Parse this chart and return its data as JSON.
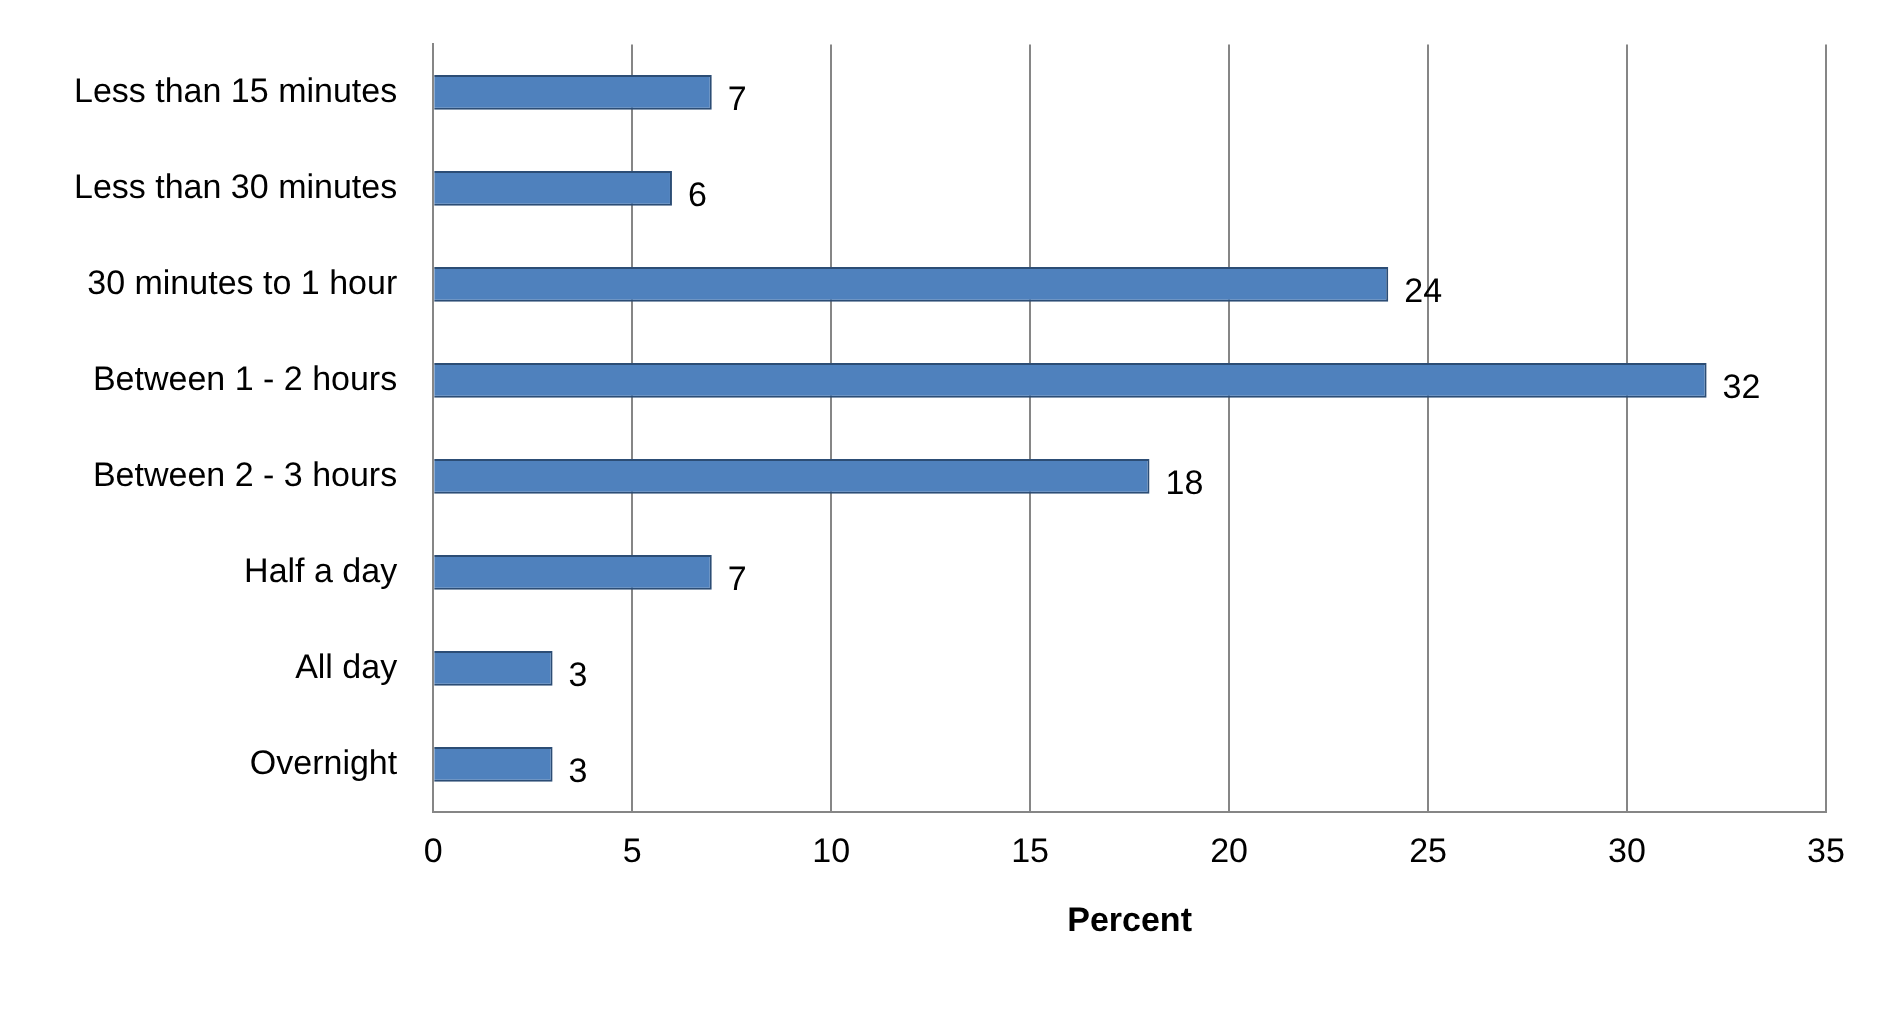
{
  "chart_data": {
    "type": "bar",
    "orientation": "horizontal",
    "xlabel": "Percent",
    "categories": [
      "Less than 15 minutes",
      "Less than 30 minutes",
      "30 minutes to 1 hour",
      "Between 1 - 2 hours",
      "Between 2 - 3 hours",
      "Half a day",
      "All day",
      "Overnight"
    ],
    "values": [
      7,
      6,
      24,
      32,
      18,
      7,
      3,
      3
    ],
    "color": "#4f81bd",
    "xlim": [
      0,
      35
    ],
    "xticks": [
      0,
      5,
      10,
      15,
      20,
      25,
      30,
      35
    ],
    "grid": "x",
    "legend": false,
    "data_labels": true
  }
}
